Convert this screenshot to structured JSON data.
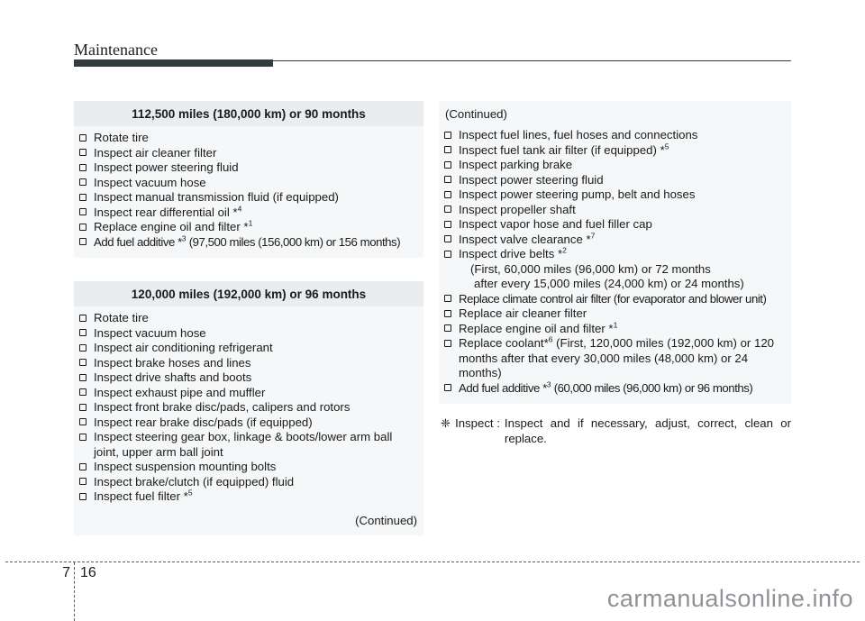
{
  "page": {
    "section_title": "Maintenance",
    "watermark": "carmanualsonline.info",
    "footer": {
      "chapter": "7",
      "page": "16"
    }
  },
  "left_column": {
    "box1": {
      "title": "112,500 miles (180,000 km) or 90 months",
      "items": [
        {
          "pre": "Rotate tire"
        },
        {
          "pre": "Inspect air cleaner filter"
        },
        {
          "pre": "Inspect power steering fluid"
        },
        {
          "pre": "Inspect vacuum hose"
        },
        {
          "pre": "Inspect manual transmission fluid (if equipped)"
        },
        {
          "pre": "Inspect rear differential oil *",
          "sup": "4"
        },
        {
          "pre": "Replace engine oil and filter *",
          "sup": "1"
        },
        {
          "pre": "Add fuel additive *",
          "sup": "3",
          "post": " (97,500 miles (156,000 km) or 156 months)",
          "nowrap": true
        }
      ]
    },
    "box2": {
      "title": "120,000 miles (192,000 km) or 96 months",
      "items": [
        {
          "pre": "Rotate tire"
        },
        {
          "pre": "Inspect vacuum hose"
        },
        {
          "pre": "Inspect air conditioning refrigerant"
        },
        {
          "pre": "Inspect brake hoses and lines"
        },
        {
          "pre": "Inspect drive shafts and boots"
        },
        {
          "pre": "Inspect exhaust pipe and muffler"
        },
        {
          "pre": "Inspect front brake disc/pads, calipers and rotors"
        },
        {
          "pre": "Inspect rear brake disc/pads (if equipped)"
        },
        {
          "pre": "Inspect steering gear box, linkage & boots/lower arm ball joint, upper arm ball joint"
        },
        {
          "pre": "Inspect suspension mounting bolts"
        },
        {
          "pre": "Inspect brake/clutch (if equipped) fluid"
        },
        {
          "pre": "Inspect fuel filter *",
          "sup": "5"
        }
      ],
      "continued_label": "(Continued)"
    }
  },
  "right_column": {
    "continued_label": "(Continued)",
    "items": [
      {
        "pre": "Inspect fuel lines, fuel hoses and connections"
      },
      {
        "pre": "Inspect fuel tank air filter (if equipped) *",
        "sup": "5"
      },
      {
        "pre": "Inspect parking brake"
      },
      {
        "pre": "Inspect power steering fluid"
      },
      {
        "pre": "Inspect power steering pump, belt and hoses"
      },
      {
        "pre": "Inspect propeller shaft"
      },
      {
        "pre": "Inspect vapor hose and fuel filler cap"
      },
      {
        "pre": "Inspect valve clearance *",
        "sup": "7"
      },
      {
        "pre": "Inspect drive belts *",
        "sup": "2",
        "sub": [
          "(First, 60,000 miles (96,000 km) or 72 months",
          "after every 15,000 miles (24,000 km) or 24 months)"
        ]
      },
      {
        "pre": "Replace climate control air filter (for evaporator and blower unit)",
        "nowrap": true
      },
      {
        "pre": "Replace air cleaner filter"
      },
      {
        "pre": "Replace engine oil and filter *",
        "sup": "1"
      },
      {
        "pre": "Replace coolant*",
        "sup": "6",
        "post": " (First, 120,000 miles (192,000 km) or 120 months after that every 30,000 miles (48,000 km) or 24 months)"
      },
      {
        "pre": "Add fuel additive *",
        "sup": "3",
        "post": " (60,000 miles (96,000 km) or 96 months)",
        "nowrap": true
      }
    ],
    "note": {
      "symbol": "❈",
      "label": "Inspect :",
      "text": "Inspect and if necessary, adjust, correct, clean or replace."
    }
  },
  "colors": {
    "box_body_bg": "#f5f7f8",
    "box_header_bg": "#e9edef",
    "title_bar": "#343c40",
    "watermark": "#8f9296"
  }
}
